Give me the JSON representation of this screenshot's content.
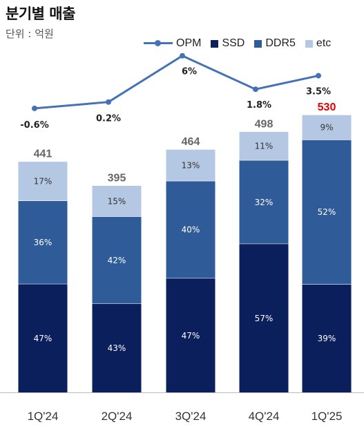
{
  "title": "분기별 매출",
  "unit": "단위 : 억원",
  "colors": {
    "OPM": "#4472b5",
    "SSD": "#0b1f5c",
    "DDR5": "#2f5c99",
    "etc": "#b4c8e4",
    "total_label": "#666666",
    "total_label_highlight": "#e00000",
    "opm_label": "#222222",
    "axis": "#bbbbbb",
    "tick": "#333333"
  },
  "legend": [
    {
      "name": "OPM",
      "shape": "line-marker"
    },
    {
      "name": "SSD",
      "shape": "square"
    },
    {
      "name": "DDR5",
      "shape": "square"
    },
    {
      "name": "etc",
      "shape": "square"
    }
  ],
  "chart_data": {
    "type": "bar",
    "stacked": true,
    "stack_mode": "percent",
    "categories": [
      "1Q'24",
      "2Q'24",
      "3Q'24",
      "4Q'24",
      "1Q'25"
    ],
    "totals": [
      441,
      395,
      464,
      498,
      530
    ],
    "total_labels": [
      "441",
      "395",
      "464",
      "498",
      "530"
    ],
    "highlight_total_index": 4,
    "series": [
      {
        "name": "SSD",
        "values": [
          47,
          43,
          47,
          57,
          39
        ],
        "labels": [
          "47%",
          "43%",
          "47%",
          "57%",
          "39%"
        ]
      },
      {
        "name": "DDR5",
        "values": [
          36,
          42,
          40,
          32,
          52
        ],
        "labels": [
          "36%",
          "42%",
          "40%",
          "32%",
          "52%"
        ]
      },
      {
        "name": "etc",
        "values": [
          17,
          15,
          13,
          11,
          9
        ],
        "labels": [
          "17%",
          "15%",
          "13%",
          "11%",
          "9%"
        ]
      }
    ],
    "line_series": {
      "name": "OPM",
      "values": [
        -0.6,
        0.2,
        6,
        1.8,
        3.5
      ],
      "labels": [
        "-0.6%",
        "0.2%",
        "6%",
        "1.8%",
        "3.5%"
      ]
    },
    "xlabel": "",
    "ylabel": "",
    "grid": false,
    "legend_position": "top-right"
  }
}
